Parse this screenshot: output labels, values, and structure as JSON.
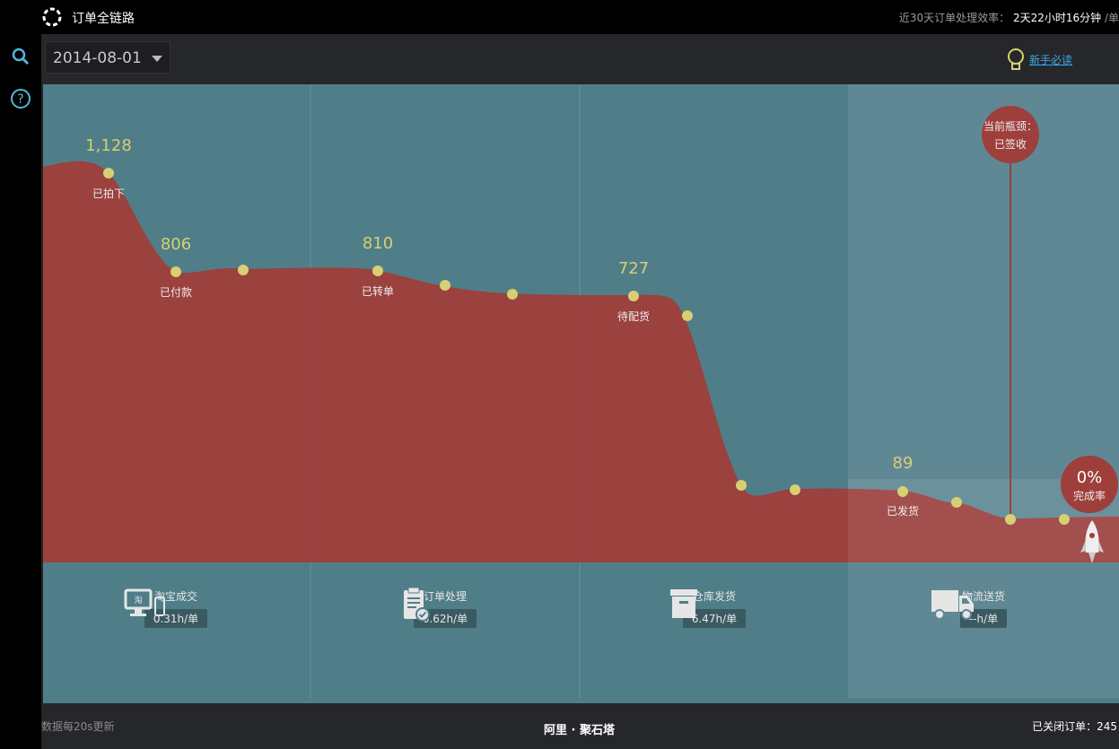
{
  "header": {
    "app_title": "订单全链路",
    "efficiency_label": "近30天订单处理效率：",
    "efficiency_value": "2天22小时16分钟",
    "efficiency_unit": "/单"
  },
  "toolbar": {
    "date_value": "2014-08-01",
    "newbie_link": "新手必读"
  },
  "chart_data": {
    "type": "area",
    "points": [
      {
        "label": "已拍下",
        "value": "1,128"
      },
      {
        "label": "已付款",
        "value": "806"
      },
      {
        "label": "已转单",
        "value": "810"
      },
      {
        "label": "待配货",
        "value": "727"
      },
      {
        "label": "已发货",
        "value": "89"
      }
    ],
    "bottleneck_title": "当前瓶颈：",
    "bottleneck_stage": "已签收",
    "completion_value": "0%",
    "completion_label": "完成率",
    "colors": {
      "area": "#9e3f3c",
      "background": "#4f7e89",
      "dot": "#d7cf72",
      "value_text": "#d7cf72"
    }
  },
  "phases": [
    {
      "name": "淘宝成交",
      "rate": "0.31h/单",
      "icon": "computer-phone-icon"
    },
    {
      "name": "订单处理",
      "rate": "0.62h/单",
      "icon": "clipboard-check-icon"
    },
    {
      "name": "仓库发货",
      "rate": "6.47h/单",
      "icon": "warehouse-box-icon"
    },
    {
      "name": "物流送货",
      "rate": "--h/单",
      "icon": "truck-icon"
    }
  ],
  "footer": {
    "update_note": "数据每20s更新",
    "brand": "阿里 · 聚石塔",
    "closed_orders_label": "已关闭订单：",
    "closed_orders_value": "245"
  }
}
